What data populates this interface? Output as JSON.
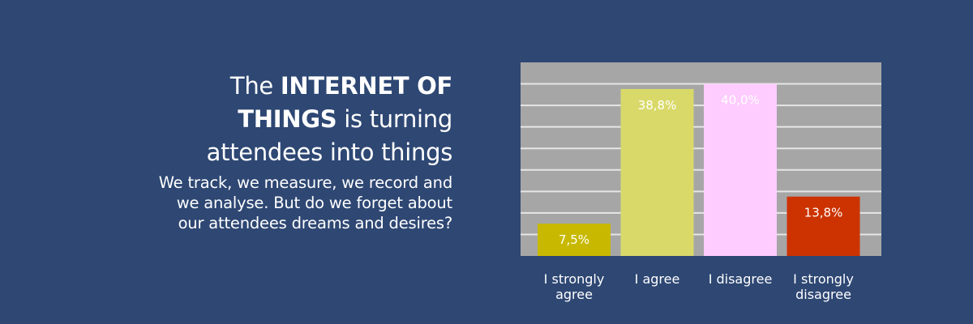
{
  "headline": {
    "line1_prefix": "The ",
    "line1_strong": "INTERNET OF",
    "line2_strong": "THINGS",
    "line2_suffix": " is turning",
    "line3": "attendees into things"
  },
  "subtext": {
    "line1": "We track, we measure, we record and",
    "line2": "we analyse. But do we forget about",
    "line3": "our attendees dreams and desires?"
  },
  "chart_data": {
    "type": "bar",
    "categories": [
      [
        "I strongly",
        "agree"
      ],
      [
        "I agree"
      ],
      [
        "I disagree"
      ],
      [
        "I strongly",
        "disagree"
      ]
    ],
    "values": [
      7.5,
      38.8,
      40.0,
      13.8
    ],
    "value_labels": [
      "7,5%",
      "38,8%",
      "40,0%",
      "13,8%"
    ],
    "bar_colors": [
      "#c8b900",
      "#d9d96a",
      "#ffccff",
      "#cc3300"
    ],
    "value_label_colors": [
      "#ffffff",
      "#ffffff",
      "#ffffff",
      "#ffffff"
    ],
    "plot_background": "#a6a6a6",
    "grid": true,
    "grid_color": "#e6e6e6",
    "ylim": [
      0,
      45
    ],
    "y_gridlines": [
      5,
      10,
      15,
      20,
      25,
      30,
      35,
      40
    ]
  }
}
